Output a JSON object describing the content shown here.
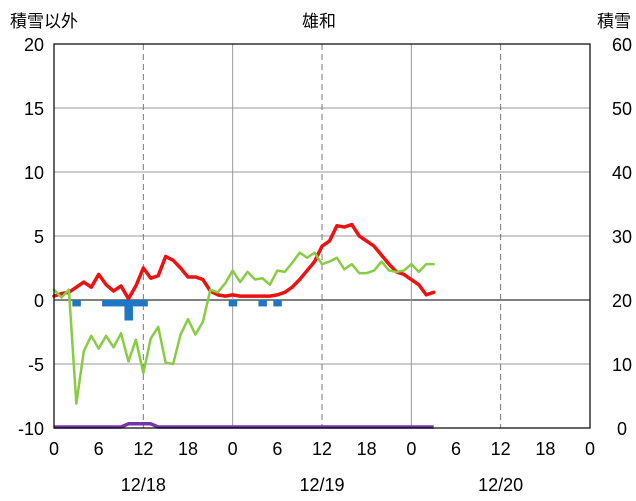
{
  "chart_data": {
    "type": "line",
    "title": "雄和",
    "left_axis_label": "積雪以外",
    "right_axis_label": "積雪",
    "left_ylim": [
      -10,
      20
    ],
    "left_yticks": [
      20,
      15,
      10,
      5,
      0,
      -5,
      -10
    ],
    "right_ylim": [
      0,
      60
    ],
    "right_yticks": [
      60,
      50,
      40,
      30,
      20,
      10,
      0
    ],
    "x_tick_labels": [
      "0",
      "6",
      "12",
      "18",
      "0",
      "6",
      "12",
      "18",
      "0",
      "6",
      "12",
      "18",
      "0"
    ],
    "date_labels": [
      "12/18",
      "12/19",
      "12/20"
    ],
    "grid": true,
    "colors": {
      "red_series": "#ee1111",
      "green_series": "#88cc44",
      "blue_bars": "#1f77c4",
      "purple_series": "#7733aa",
      "grid_dashed": "#777777",
      "grid_day": "#999999",
      "zero_line": "#808080"
    },
    "series": [
      {
        "color_key": "red_series",
        "hours": [
          0,
          1,
          2,
          3,
          4,
          5,
          6,
          7,
          8,
          9,
          10,
          11,
          12,
          13,
          14,
          15,
          16,
          17,
          18,
          19,
          20,
          21,
          22,
          23,
          24,
          25,
          26,
          27,
          28,
          29,
          30,
          31,
          32,
          33,
          34,
          35,
          36,
          37,
          38,
          39,
          40,
          41,
          42,
          43,
          44,
          45,
          46,
          47,
          48,
          49,
          50,
          51
        ],
        "values": [
          0.3,
          0.5,
          0.6,
          1.0,
          1.4,
          1.0,
          2.0,
          1.2,
          0.7,
          1.1,
          0.1,
          1.1,
          2.5,
          1.7,
          1.9,
          3.4,
          3.1,
          2.5,
          1.8,
          1.8,
          1.6,
          0.7,
          0.4,
          0.3,
          0.4,
          0.3,
          0.3,
          0.3,
          0.3,
          0.3,
          0.4,
          0.6,
          1.0,
          1.6,
          2.3,
          3.0,
          4.2,
          4.6,
          5.8,
          5.7,
          5.9,
          5.0,
          4.6,
          4.2,
          3.5,
          2.8,
          2.2,
          2.0,
          1.6,
          1.2,
          0.4,
          0.6
        ]
      },
      {
        "color_key": "green_series",
        "hours": [
          0,
          1,
          2,
          3,
          4,
          5,
          6,
          7,
          8,
          9,
          10,
          11,
          12,
          13,
          14,
          15,
          16,
          17,
          18,
          19,
          20,
          21,
          22,
          23,
          24,
          25,
          26,
          27,
          28,
          29,
          30,
          31,
          32,
          33,
          34,
          35,
          36,
          37,
          38,
          39,
          40,
          41,
          42,
          43,
          44,
          45,
          46,
          47,
          48,
          49,
          50,
          51
        ],
        "values": [
          0.8,
          0.2,
          0.8,
          -8.1,
          -4.0,
          -2.8,
          -3.8,
          -2.8,
          -3.7,
          -2.6,
          -4.8,
          -3.1,
          -5.7,
          -3.0,
          -2.1,
          -4.9,
          -5.0,
          -2.7,
          -1.5,
          -2.7,
          -1.7,
          0.8,
          0.6,
          1.3,
          2.3,
          1.4,
          2.2,
          1.6,
          1.7,
          1.2,
          2.3,
          2.2,
          2.9,
          3.7,
          3.3,
          3.7,
          2.8,
          3.0,
          3.3,
          2.4,
          2.8,
          2.1,
          2.1,
          2.3,
          3.0,
          2.3,
          2.2,
          2.3,
          2.8,
          2.2,
          2.8,
          2.8
        ]
      },
      {
        "color_key": "blue_bars",
        "hours": [
          3,
          7,
          8,
          9,
          10,
          11,
          12,
          24,
          28,
          30
        ],
        "values": [
          -0.5,
          -0.5,
          -0.5,
          -0.5,
          -1.6,
          -0.5,
          -0.5,
          -0.5,
          -0.5,
          -0.5
        ]
      },
      {
        "color_key": "purple_series",
        "hours": [
          0,
          9,
          10,
          11,
          12,
          13,
          14,
          51
        ],
        "values": [
          0,
          0,
          0.5,
          0.5,
          0.5,
          0.5,
          0,
          0
        ]
      }
    ]
  }
}
